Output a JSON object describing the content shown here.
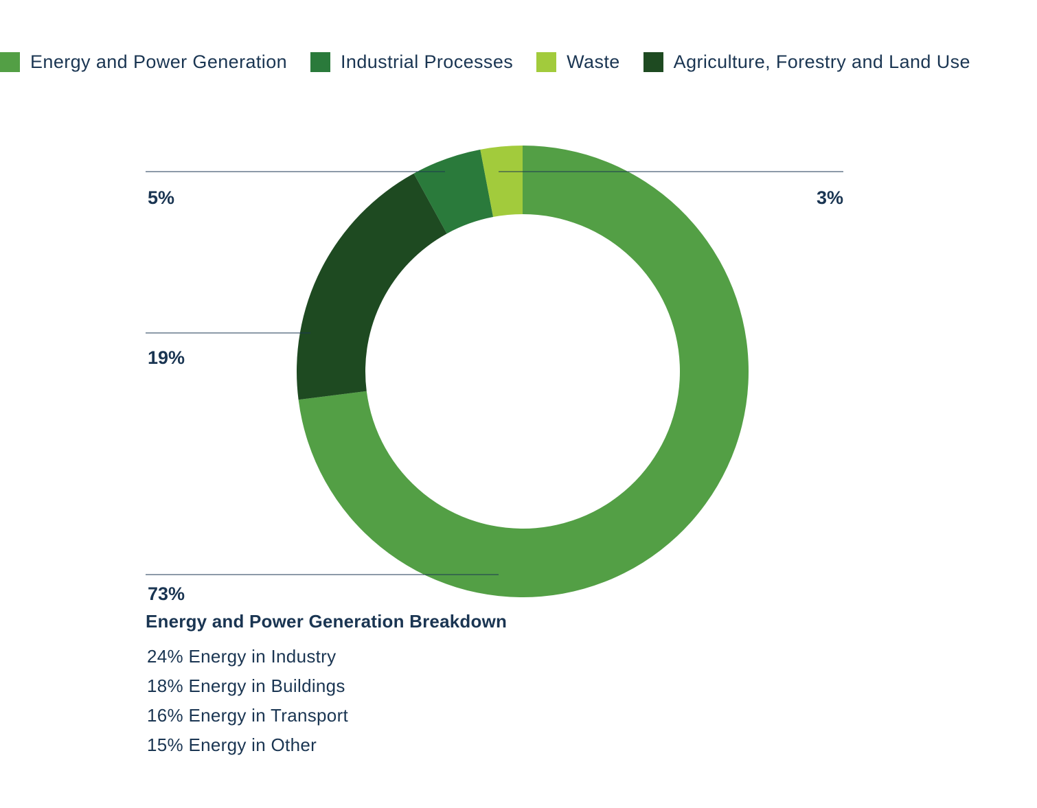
{
  "chart_data": {
    "type": "donut",
    "start": "top",
    "direction": "clockwise",
    "series": [
      {
        "name": "Energy and Power Generation",
        "value": 73,
        "label": "73%",
        "color": "#539f45"
      },
      {
        "name": "Agriculture, Forestry and Land Use",
        "value": 19,
        "label": "19%",
        "color": "#1e4a21"
      },
      {
        "name": "Industrial Processes",
        "value": 5,
        "label": "5%",
        "color": "#2a7a3b"
      },
      {
        "name": "Waste",
        "value": 3,
        "label": "3%",
        "color": "#a2cb3c"
      }
    ],
    "legend": {
      "placement": "top-left",
      "items": [
        {
          "label": "Energy and Power Generation",
          "color": "#539f45"
        },
        {
          "label": "Industrial Processes",
          "color": "#2a7a3b"
        },
        {
          "label": "Waste",
          "color": "#a2cb3c"
        },
        {
          "label": "Agriculture, Forestry and Land Use",
          "color": "#1e4a21"
        }
      ]
    }
  },
  "breakdown": {
    "title": "Energy and Power Generation Breakdown",
    "items": [
      "24% Energy in Industry",
      "18% Energy in Buildings",
      "16% Energy in Transport",
      "15% Energy in Other"
    ]
  }
}
